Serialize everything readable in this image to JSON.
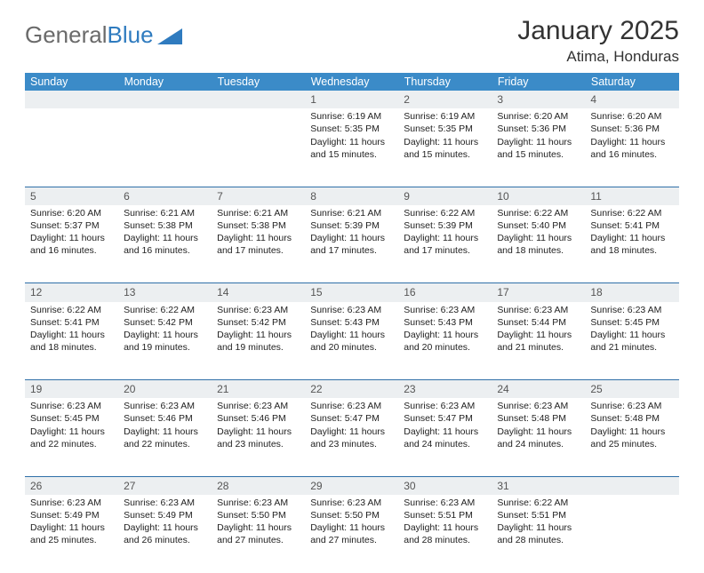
{
  "logo": {
    "text_gray": "General",
    "text_blue": "Blue"
  },
  "title": "January 2025",
  "location": "Atima, Honduras",
  "colors": {
    "header_bg": "#3b8bc8",
    "header_text": "#ffffff",
    "daynum_bg": "#eceff1",
    "row_border": "#2f6fa8",
    "logo_gray": "#6a6a6a",
    "logo_blue": "#2f7bbf"
  },
  "weekdays": [
    "Sunday",
    "Monday",
    "Tuesday",
    "Wednesday",
    "Thursday",
    "Friday",
    "Saturday"
  ],
  "weeks": [
    [
      null,
      null,
      null,
      {
        "n": "1",
        "sr": "6:19 AM",
        "ss": "5:35 PM",
        "dl": "11 hours and 15 minutes."
      },
      {
        "n": "2",
        "sr": "6:19 AM",
        "ss": "5:35 PM",
        "dl": "11 hours and 15 minutes."
      },
      {
        "n": "3",
        "sr": "6:20 AM",
        "ss": "5:36 PM",
        "dl": "11 hours and 15 minutes."
      },
      {
        "n": "4",
        "sr": "6:20 AM",
        "ss": "5:36 PM",
        "dl": "11 hours and 16 minutes."
      }
    ],
    [
      {
        "n": "5",
        "sr": "6:20 AM",
        "ss": "5:37 PM",
        "dl": "11 hours and 16 minutes."
      },
      {
        "n": "6",
        "sr": "6:21 AM",
        "ss": "5:38 PM",
        "dl": "11 hours and 16 minutes."
      },
      {
        "n": "7",
        "sr": "6:21 AM",
        "ss": "5:38 PM",
        "dl": "11 hours and 17 minutes."
      },
      {
        "n": "8",
        "sr": "6:21 AM",
        "ss": "5:39 PM",
        "dl": "11 hours and 17 minutes."
      },
      {
        "n": "9",
        "sr": "6:22 AM",
        "ss": "5:39 PM",
        "dl": "11 hours and 17 minutes."
      },
      {
        "n": "10",
        "sr": "6:22 AM",
        "ss": "5:40 PM",
        "dl": "11 hours and 18 minutes."
      },
      {
        "n": "11",
        "sr": "6:22 AM",
        "ss": "5:41 PM",
        "dl": "11 hours and 18 minutes."
      }
    ],
    [
      {
        "n": "12",
        "sr": "6:22 AM",
        "ss": "5:41 PM",
        "dl": "11 hours and 18 minutes."
      },
      {
        "n": "13",
        "sr": "6:22 AM",
        "ss": "5:42 PM",
        "dl": "11 hours and 19 minutes."
      },
      {
        "n": "14",
        "sr": "6:23 AM",
        "ss": "5:42 PM",
        "dl": "11 hours and 19 minutes."
      },
      {
        "n": "15",
        "sr": "6:23 AM",
        "ss": "5:43 PM",
        "dl": "11 hours and 20 minutes."
      },
      {
        "n": "16",
        "sr": "6:23 AM",
        "ss": "5:43 PM",
        "dl": "11 hours and 20 minutes."
      },
      {
        "n": "17",
        "sr": "6:23 AM",
        "ss": "5:44 PM",
        "dl": "11 hours and 21 minutes."
      },
      {
        "n": "18",
        "sr": "6:23 AM",
        "ss": "5:45 PM",
        "dl": "11 hours and 21 minutes."
      }
    ],
    [
      {
        "n": "19",
        "sr": "6:23 AM",
        "ss": "5:45 PM",
        "dl": "11 hours and 22 minutes."
      },
      {
        "n": "20",
        "sr": "6:23 AM",
        "ss": "5:46 PM",
        "dl": "11 hours and 22 minutes."
      },
      {
        "n": "21",
        "sr": "6:23 AM",
        "ss": "5:46 PM",
        "dl": "11 hours and 23 minutes."
      },
      {
        "n": "22",
        "sr": "6:23 AM",
        "ss": "5:47 PM",
        "dl": "11 hours and 23 minutes."
      },
      {
        "n": "23",
        "sr": "6:23 AM",
        "ss": "5:47 PM",
        "dl": "11 hours and 24 minutes."
      },
      {
        "n": "24",
        "sr": "6:23 AM",
        "ss": "5:48 PM",
        "dl": "11 hours and 24 minutes."
      },
      {
        "n": "25",
        "sr": "6:23 AM",
        "ss": "5:48 PM",
        "dl": "11 hours and 25 minutes."
      }
    ],
    [
      {
        "n": "26",
        "sr": "6:23 AM",
        "ss": "5:49 PM",
        "dl": "11 hours and 25 minutes."
      },
      {
        "n": "27",
        "sr": "6:23 AM",
        "ss": "5:49 PM",
        "dl": "11 hours and 26 minutes."
      },
      {
        "n": "28",
        "sr": "6:23 AM",
        "ss": "5:50 PM",
        "dl": "11 hours and 27 minutes."
      },
      {
        "n": "29",
        "sr": "6:23 AM",
        "ss": "5:50 PM",
        "dl": "11 hours and 27 minutes."
      },
      {
        "n": "30",
        "sr": "6:23 AM",
        "ss": "5:51 PM",
        "dl": "11 hours and 28 minutes."
      },
      {
        "n": "31",
        "sr": "6:22 AM",
        "ss": "5:51 PM",
        "dl": "11 hours and 28 minutes."
      },
      null
    ]
  ],
  "labels": {
    "sunrise": "Sunrise:",
    "sunset": "Sunset:",
    "daylight": "Daylight:"
  }
}
